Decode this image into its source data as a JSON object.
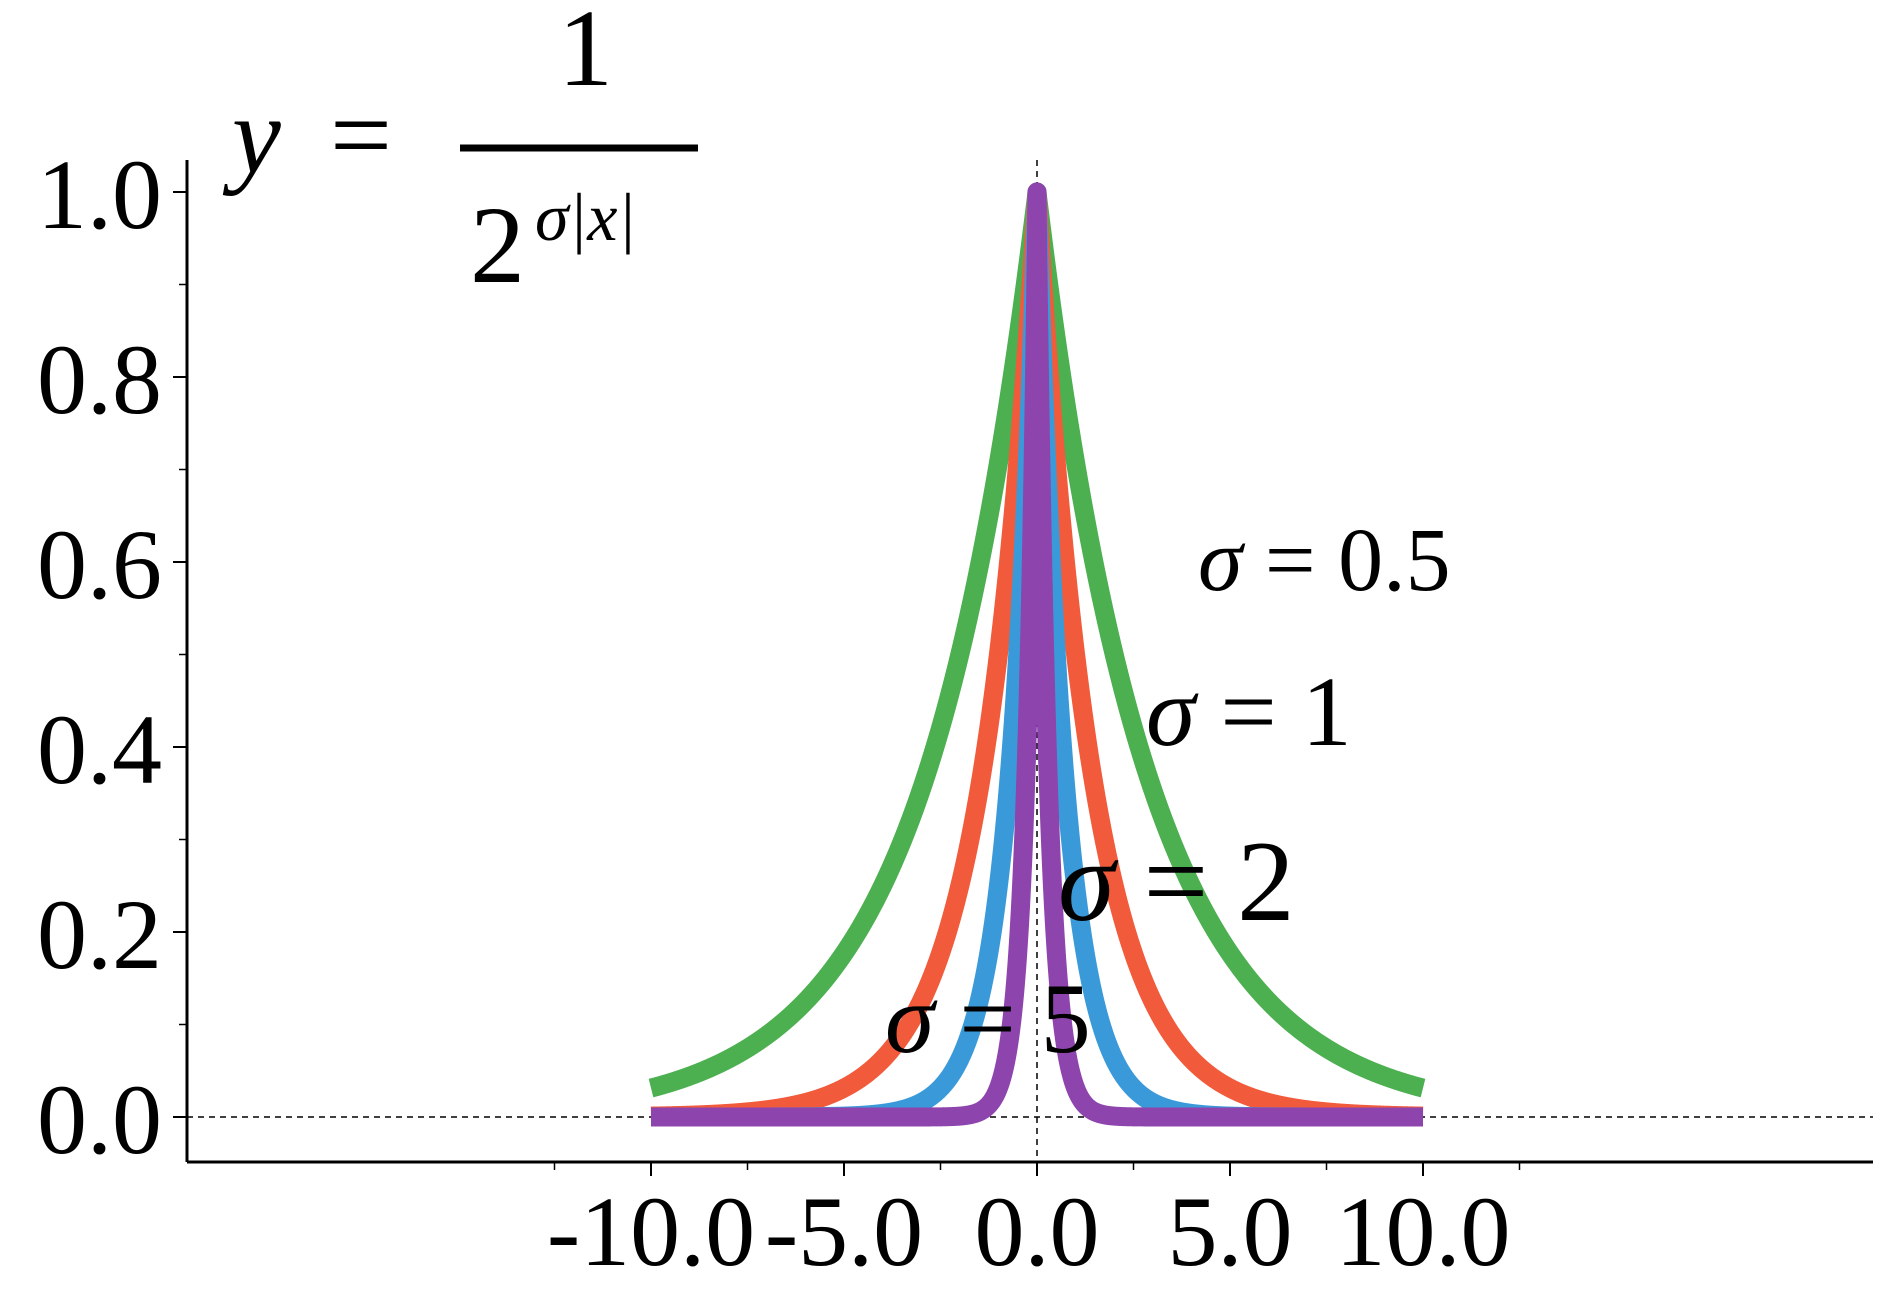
{
  "chart_data": {
    "type": "line",
    "title": "",
    "xlabel": "",
    "ylabel": "",
    "xlim": [
      -12,
      12
    ],
    "ylim": [
      -0.05,
      1.03
    ],
    "xticks": [
      -10.0,
      -5.0,
      0.0,
      5.0,
      10.0
    ],
    "xtick_labels": [
      "-10.0",
      "-5.0",
      "0.0",
      "5.0",
      "10.0"
    ],
    "yticks": [
      0.0,
      0.2,
      0.4,
      0.6,
      0.8,
      1.0
    ],
    "ytick_labels": [
      "0.0",
      "0.2",
      "0.4",
      "0.6",
      "0.8",
      "1.0"
    ],
    "grid": false,
    "reference_lines": {
      "x": 0,
      "y": 0,
      "style": "dashed"
    },
    "formula": {
      "lhs": "y",
      "equals": "=",
      "numerator": "1",
      "denominator_base": "2",
      "denominator_exponent": "σ|x|"
    },
    "function": "y = 1 / 2^(σ|x|)",
    "x_range": [
      -10,
      10
    ],
    "series": [
      {
        "sigma": 0.5,
        "label": "σ = 0.5",
        "color": "#4caf50"
      },
      {
        "sigma": 1,
        "label": "σ = 1",
        "color": "#f15a3a"
      },
      {
        "sigma": 2,
        "label": "σ = 2",
        "color": "#3a9ad9"
      },
      {
        "sigma": 5,
        "label": "σ = 5",
        "color": "#8e44ad"
      }
    ]
  }
}
